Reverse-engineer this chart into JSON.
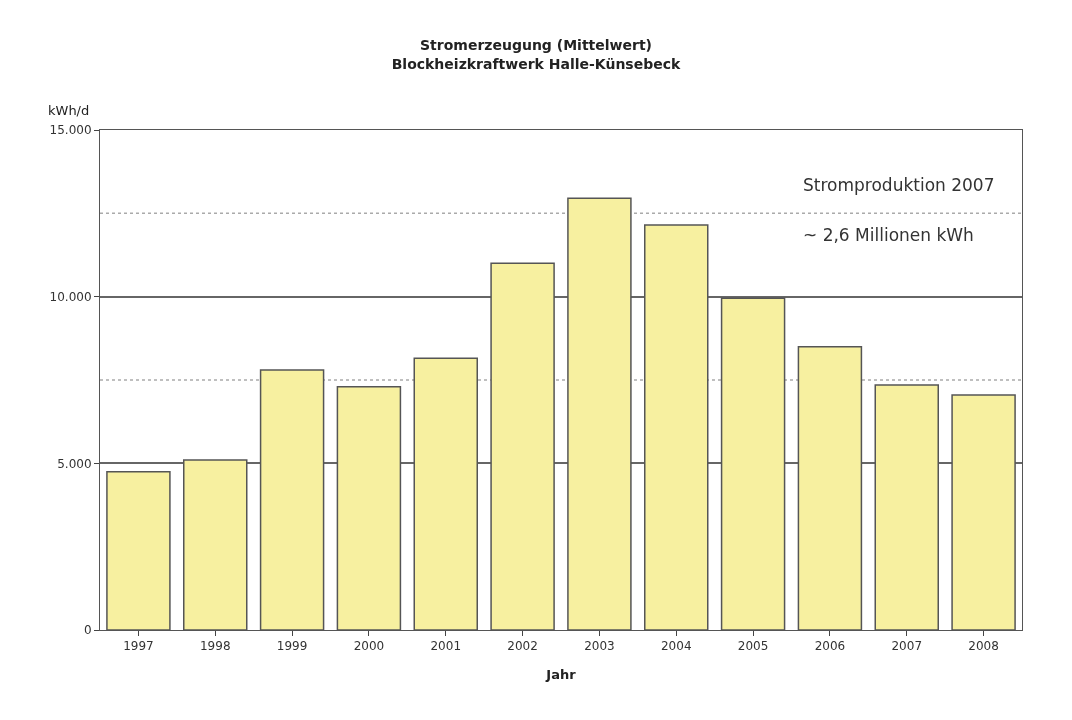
{
  "chart_data": {
    "type": "bar",
    "title": "Stromerzeugung (Mittelwert)",
    "subtitle": "Blockheizkraftwerk Halle-Künsebeck",
    "ylabel": "kWh/d",
    "xlabel": "Jahr",
    "categories": [
      "1997",
      "1998",
      "1999",
      "2000",
      "2001",
      "2002",
      "2003",
      "2004",
      "2005",
      "2006",
      "2007",
      "2008"
    ],
    "values": [
      4750,
      5100,
      7800,
      7300,
      8150,
      11000,
      12950,
      12150,
      9950,
      8500,
      7350,
      7050
    ],
    "color": "#f7f0a0",
    "ylim": [
      0,
      15000
    ],
    "yticks": [
      0,
      {
        "value": 5000,
        "label": "5.000"
      },
      {
        "value": 10000,
        "label": "10.000"
      },
      {
        "value": 15000,
        "label": "15.000"
      }
    ],
    "grid": "y",
    "ref_lines": [
      {
        "axis": "y",
        "value": 7500,
        "label": null,
        "color": "#aaaaaa",
        "line_style": "dotted"
      },
      {
        "axis": "y",
        "value": 12500,
        "label": null,
        "color": "#aaaaaa",
        "line_style": "dotted"
      }
    ],
    "annotations": [
      "Stromproduktion 2007",
      "~ 2,6 Millionen kWh"
    ]
  }
}
